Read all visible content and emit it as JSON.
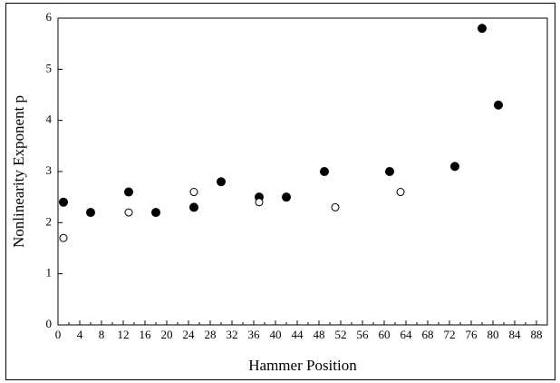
{
  "chart_data": {
    "type": "scatter",
    "x_label": "Hammer Position",
    "y_label": "Nonlinearity Exponent p",
    "xlim": [
      0,
      90
    ],
    "xticks": [
      0,
      4,
      8,
      12,
      16,
      20,
      24,
      28,
      32,
      36,
      40,
      44,
      48,
      52,
      56,
      60,
      64,
      68,
      72,
      76,
      80,
      84,
      88
    ],
    "ylim": [
      0,
      6
    ],
    "yticks": [
      0,
      1,
      2,
      3,
      4,
      5,
      6
    ],
    "series": [
      {
        "color": "#000000",
        "filled": true,
        "x": [
          1,
          6,
          13,
          18,
          25,
          30,
          37,
          42,
          49,
          61,
          73,
          78,
          81
        ],
        "values": [
          2.4,
          2.2,
          2.6,
          2.2,
          2.3,
          2.8,
          2.5,
          2.5,
          3.0,
          3.0,
          3.1,
          5.8,
          4.3
        ]
      },
      {
        "color": "#000000",
        "filled": false,
        "x": [
          1,
          13,
          25,
          37,
          51,
          63
        ],
        "values": [
          1.7,
          2.2,
          2.6,
          2.4,
          2.3,
          2.6
        ]
      }
    ]
  }
}
